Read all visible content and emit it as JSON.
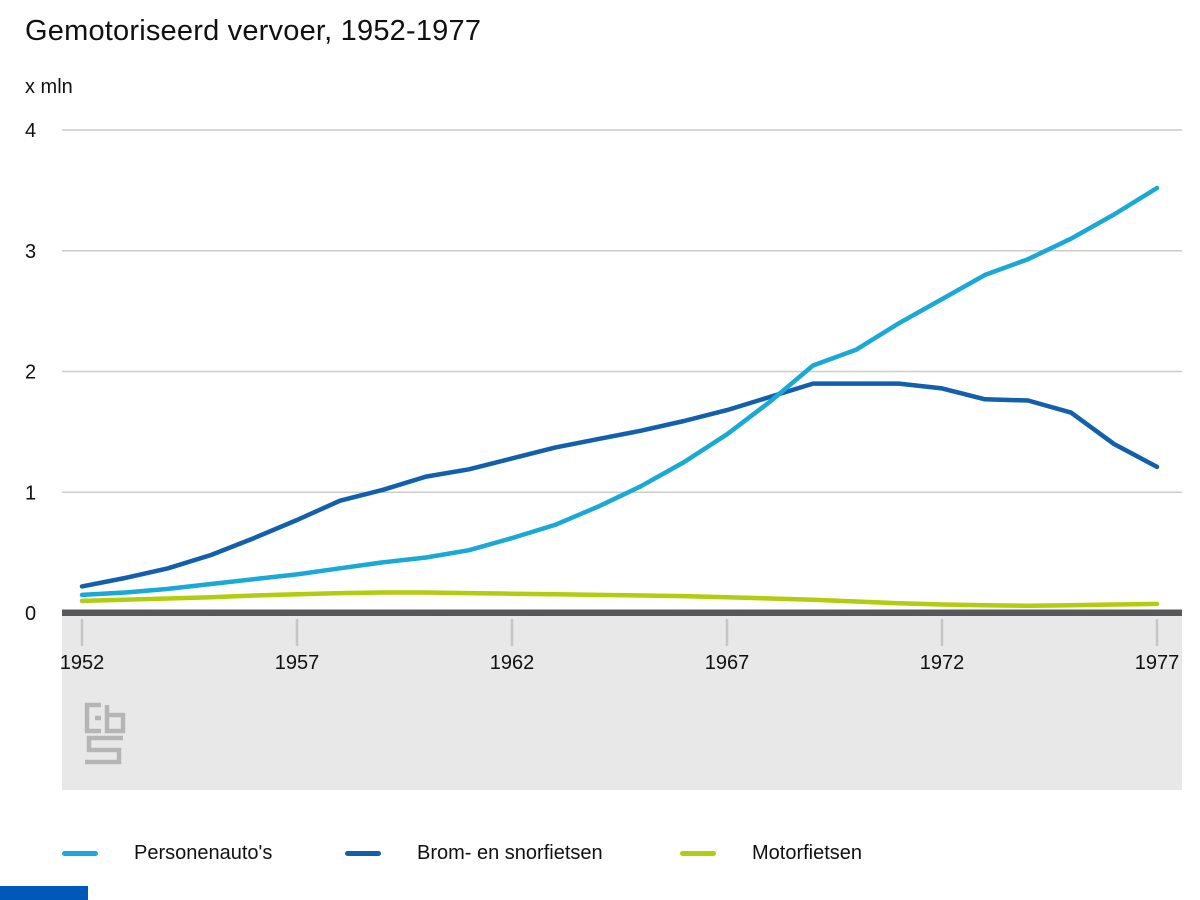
{
  "title": "Gemotoriseerd vervoer, 1952-1977",
  "unit_label": "x mln",
  "chart_data": {
    "type": "line",
    "x": [
      1952,
      1953,
      1954,
      1955,
      1956,
      1957,
      1958,
      1959,
      1960,
      1961,
      1962,
      1963,
      1964,
      1965,
      1966,
      1967,
      1968,
      1969,
      1970,
      1971,
      1972,
      1973,
      1974,
      1975,
      1976,
      1977
    ],
    "series": [
      {
        "name": "Personenauto's",
        "color": "#1aa8d6",
        "values": [
          0.15,
          0.17,
          0.2,
          0.24,
          0.28,
          0.32,
          0.37,
          0.42,
          0.46,
          0.52,
          0.62,
          0.73,
          0.88,
          1.05,
          1.25,
          1.48,
          1.75,
          2.05,
          2.18,
          2.4,
          2.6,
          2.8,
          2.93,
          3.1,
          3.3,
          3.52
        ]
      },
      {
        "name": "Brom- en snorfietsen",
        "color": "#125fad",
        "values": [
          0.22,
          0.29,
          0.37,
          0.48,
          0.62,
          0.77,
          0.93,
          1.02,
          1.13,
          1.19,
          1.28,
          1.37,
          1.44,
          1.51,
          1.59,
          1.68,
          1.79,
          1.9,
          1.9,
          1.9,
          1.86,
          1.77,
          1.76,
          1.66,
          1.4,
          1.21
        ]
      },
      {
        "name": "Motorfietsen",
        "color": "#b2cc0e",
        "values": [
          0.1,
          0.11,
          0.12,
          0.13,
          0.145,
          0.155,
          0.165,
          0.17,
          0.17,
          0.165,
          0.16,
          0.155,
          0.15,
          0.145,
          0.14,
          0.13,
          0.12,
          0.11,
          0.095,
          0.08,
          0.07,
          0.065,
          0.06,
          0.065,
          0.07,
          0.075
        ]
      }
    ],
    "title": "Gemotoriseerd vervoer, 1952-1977",
    "xlabel": "",
    "ylabel": "x mln",
    "ylim": [
      0,
      4
    ],
    "y_ticks": [
      0,
      1,
      2,
      3,
      4
    ],
    "x_ticks": [
      1952,
      1957,
      1962,
      1967,
      1972,
      1977
    ],
    "grid": true,
    "legend_position": "bottom"
  },
  "colors": {
    "grid": "#cccccc",
    "axis_line": "#58585a",
    "axis_band": "#e8e8e8",
    "tick_mark": "#c5c5c5",
    "text": "#111111",
    "watermark": "#b5b5b5",
    "footer_bar": "#0058b8"
  }
}
